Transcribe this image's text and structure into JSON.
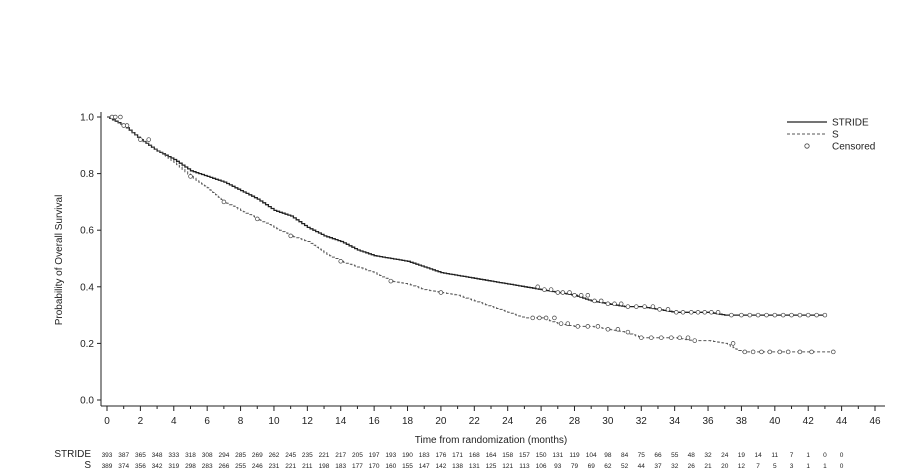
{
  "chart_data": {
    "type": "line",
    "title": "",
    "xlabel": "Time from randomization (months)",
    "ylabel": "Probability of Overall Survival",
    "xlim": [
      0,
      46
    ],
    "ylim": [
      0,
      1.0
    ],
    "x_ticks": [
      0,
      2,
      4,
      6,
      8,
      10,
      12,
      14,
      16,
      18,
      20,
      22,
      24,
      26,
      28,
      30,
      32,
      34,
      36,
      38,
      40,
      42,
      44,
      46
    ],
    "y_ticks": [
      "0.0",
      "0.2",
      "0.4",
      "0.6",
      "0.8",
      "1.0"
    ],
    "grid": false,
    "legend_position": "top-right",
    "legend": [
      {
        "label": "STRIDE",
        "style": "solid"
      },
      {
        "label": "S",
        "style": "dashed"
      },
      {
        "label": "Censored",
        "style": "marker"
      }
    ],
    "series": [
      {
        "name": "STRIDE",
        "color": "#222222",
        "style": "solid",
        "x": [
          0,
          1,
          2,
          3,
          4,
          5,
          6,
          7,
          8,
          9,
          10,
          11,
          12,
          13,
          14,
          15,
          16,
          17,
          18,
          19,
          20,
          21,
          22,
          23,
          24,
          25,
          26,
          27,
          28,
          29,
          30,
          31,
          32,
          33,
          34,
          35,
          36,
          37,
          38,
          39,
          40,
          41,
          42,
          43
        ],
        "y": [
          1.0,
          0.97,
          0.92,
          0.88,
          0.85,
          0.81,
          0.79,
          0.77,
          0.74,
          0.71,
          0.67,
          0.65,
          0.61,
          0.58,
          0.56,
          0.53,
          0.51,
          0.5,
          0.49,
          0.47,
          0.45,
          0.44,
          0.43,
          0.42,
          0.41,
          0.4,
          0.39,
          0.38,
          0.37,
          0.35,
          0.34,
          0.33,
          0.33,
          0.32,
          0.31,
          0.31,
          0.31,
          0.3,
          0.3,
          0.3,
          0.3,
          0.3,
          0.3,
          0.3
        ]
      },
      {
        "name": "S",
        "color": "#555555",
        "style": "dashed",
        "x": [
          0,
          1,
          2,
          3,
          4,
          5,
          6,
          7,
          8,
          9,
          10,
          11,
          12,
          13,
          14,
          15,
          16,
          17,
          18,
          19,
          20,
          21,
          22,
          23,
          24,
          25,
          26,
          27,
          28,
          29,
          30,
          31,
          32,
          33,
          34,
          35,
          36,
          37,
          38,
          39,
          40,
          41,
          42,
          43,
          43.5
        ],
        "y": [
          1.0,
          0.97,
          0.92,
          0.88,
          0.84,
          0.79,
          0.75,
          0.7,
          0.67,
          0.64,
          0.61,
          0.58,
          0.56,
          0.52,
          0.49,
          0.47,
          0.45,
          0.42,
          0.41,
          0.39,
          0.38,
          0.37,
          0.35,
          0.33,
          0.31,
          0.29,
          0.29,
          0.27,
          0.26,
          0.26,
          0.25,
          0.24,
          0.22,
          0.22,
          0.22,
          0.21,
          0.21,
          0.2,
          0.17,
          0.17,
          0.17,
          0.17,
          0.17,
          0.17,
          0.17
        ]
      }
    ],
    "censored": [
      {
        "series": "STRIDE",
        "x": [
          0.3,
          0.8,
          1.2,
          2.0,
          25.8,
          26.2,
          26.6,
          27.0,
          27.3,
          27.7,
          28.0,
          28.4,
          28.8,
          29.2,
          29.6,
          30.0,
          30.4,
          30.8,
          31.2,
          31.7,
          32.2,
          32.7,
          33.1,
          33.6,
          34.1,
          34.5,
          35.0,
          35.4,
          35.8,
          36.2,
          36.6,
          37.4,
          38.0,
          38.5,
          39.0,
          39.5,
          40.0,
          40.5,
          41.0,
          41.5,
          42.0,
          42.5,
          43.0
        ]
      },
      {
        "series": "S",
        "x": [
          0.5,
          1.0,
          2.5,
          5.0,
          7.0,
          9.0,
          11.0,
          14.0,
          17.0,
          20.0,
          25.5,
          25.9,
          26.3,
          26.8,
          27.2,
          27.6,
          28.2,
          28.8,
          29.4,
          30.0,
          30.6,
          31.2,
          32.0,
          32.6,
          33.2,
          33.8,
          34.3,
          34.8,
          35.2,
          37.5,
          38.2,
          38.7,
          39.2,
          39.7,
          40.3,
          40.8,
          41.5,
          42.2,
          43.5
        ]
      }
    ],
    "risk_table": {
      "times": [
        0,
        1,
        2,
        3,
        4,
        5,
        6,
        7,
        8,
        9,
        10,
        11,
        12,
        13,
        14,
        15,
        16,
        17,
        18,
        19,
        20,
        21,
        22,
        23,
        24,
        25,
        26,
        27,
        28,
        29,
        30,
        31,
        32,
        33,
        34,
        35,
        36,
        37,
        38,
        39,
        40,
        41,
        42,
        43,
        44
      ],
      "rows": [
        {
          "label": "STRIDE",
          "values": [
            "393",
            "387",
            "365",
            "348",
            "333",
            "318",
            "308",
            "294",
            "285",
            "269",
            "262",
            "245",
            "235",
            "221",
            "217",
            "205",
            "197",
            "193",
            "190",
            "183",
            "176",
            "171",
            "168",
            "164",
            "158",
            "157",
            "150",
            "131",
            "119",
            "104",
            "98",
            "84",
            "75",
            "66",
            "55",
            "48",
            "32",
            "24",
            "19",
            "14",
            "11",
            "7",
            "1",
            "0",
            "0"
          ]
        },
        {
          "label": "S",
          "values": [
            "389",
            "374",
            "356",
            "342",
            "319",
            "298",
            "283",
            "266",
            "255",
            "246",
            "231",
            "221",
            "211",
            "198",
            "183",
            "177",
            "170",
            "160",
            "155",
            "147",
            "142",
            "138",
            "131",
            "125",
            "121",
            "113",
            "106",
            "93",
            "79",
            "69",
            "62",
            "52",
            "44",
            "37",
            "32",
            "26",
            "21",
            "20",
            "12",
            "7",
            "5",
            "3",
            "1",
            "1",
            "0"
          ]
        }
      ]
    }
  }
}
